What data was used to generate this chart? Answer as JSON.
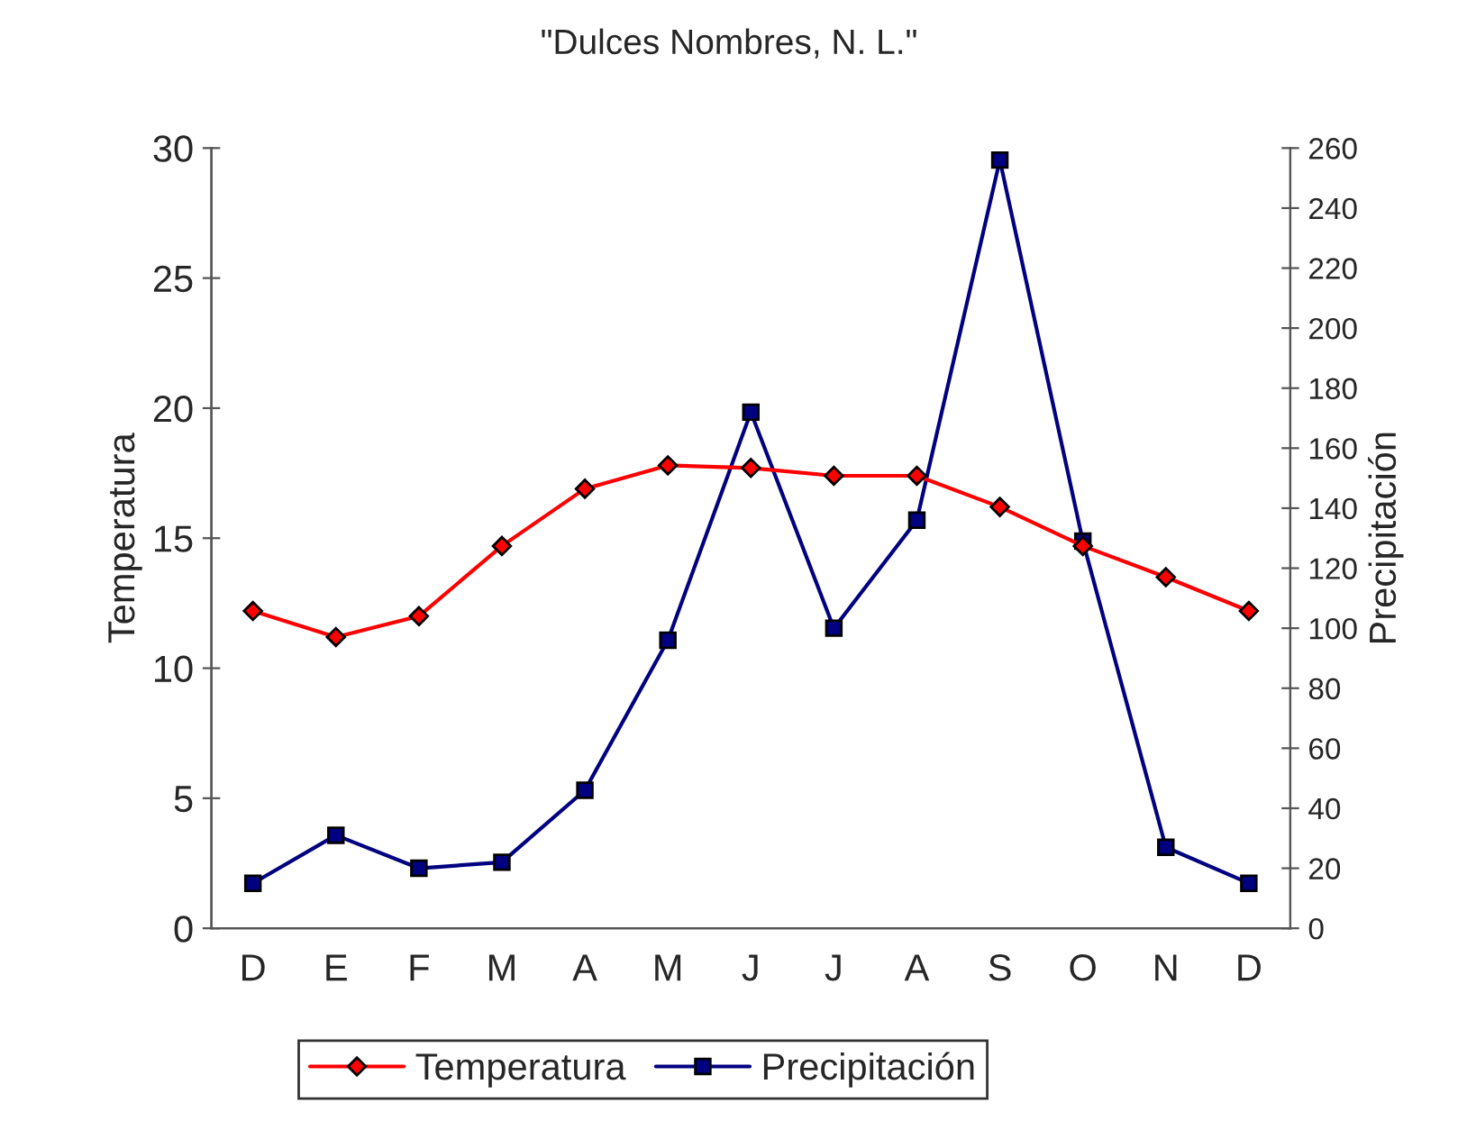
{
  "chart_data": {
    "type": "line",
    "title": "\"Dulces Nombres, N. L.\"",
    "ylabel": "Temperatura",
    "y2label": "Precipitación",
    "categories": [
      "D",
      "E",
      "F",
      "M",
      "A",
      "M",
      "J",
      "J",
      "A",
      "S",
      "O",
      "N",
      "D"
    ],
    "series": [
      {
        "name": "Temperatura",
        "color": "#ff0000",
        "marker": "diamond",
        "values": [
          12.2,
          11.2,
          12.0,
          14.7,
          16.9,
          17.8,
          17.7,
          17.4,
          17.4,
          16.2,
          14.7,
          13.5,
          12.2
        ]
      },
      {
        "name": "Precipitación",
        "color": "#000080",
        "marker": "square",
        "axis": "y2",
        "values": [
          15,
          31,
          20,
          22,
          46,
          96,
          172,
          100,
          136,
          256,
          129,
          27,
          15
        ]
      }
    ],
    "ylim": [
      0,
      30
    ],
    "yticks": [
      0,
      5,
      10,
      15,
      20,
      25,
      30
    ],
    "y2lim": [
      0,
      260
    ],
    "y2ticks": [
      0,
      20,
      40,
      60,
      80,
      100,
      120,
      140,
      160,
      180,
      200,
      220,
      240,
      260
    ],
    "grid": false,
    "legend": "bottom"
  }
}
